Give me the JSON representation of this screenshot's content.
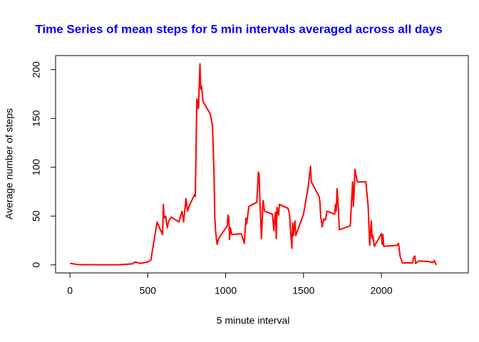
{
  "chart_data": {
    "type": "line",
    "title": "Time Series of mean steps for 5 min intervals averaged across all days",
    "x_label": "5 minute interval",
    "y_label": "Average number of steps",
    "xlim": [
      -92,
      2558
    ],
    "ylim": [
      -8.2,
      214.4
    ],
    "xticks": [
      0,
      500,
      1000,
      1500,
      2000
    ],
    "yticks": [
      0,
      50,
      100,
      150,
      200
    ],
    "series": [
      {
        "name": "mean steps",
        "color": "#ff0000",
        "x": [
          0,
          50,
          100,
          200,
          300,
          350,
          400,
          420,
          450,
          500,
          520,
          535,
          560,
          575,
          595,
          600,
          605,
          615,
          625,
          635,
          650,
          700,
          710,
          720,
          730,
          745,
          755,
          765,
          800,
          805,
          815,
          825,
          835,
          840,
          845,
          855,
          900,
          915,
          920,
          925,
          930,
          935,
          945,
          955,
          1010,
          1015,
          1020,
          1025,
          1030,
          1040,
          1100,
          1120,
          1130,
          1135,
          1145,
          1150,
          1200,
          1210,
          1215,
          1220,
          1230,
          1240,
          1250,
          1300,
          1310,
          1315,
          1320,
          1325,
          1330,
          1340,
          1345,
          1400,
          1405,
          1410,
          1415,
          1425,
          1430,
          1435,
          1440,
          1445,
          1450,
          1500,
          1530,
          1545,
          1550,
          1600,
          1605,
          1610,
          1620,
          1630,
          1640,
          1650,
          1700,
          1705,
          1710,
          1715,
          1720,
          1730,
          1800,
          1815,
          1820,
          1825,
          1830,
          1845,
          1900,
          1915,
          1925,
          1930,
          1935,
          1940,
          1945,
          1950,
          1955,
          2000,
          2005,
          2010,
          2015,
          2100,
          2110,
          2115,
          2120,
          2135,
          2200,
          2205,
          2215,
          2220,
          2240,
          2300,
          2330,
          2340,
          2350,
          2355
        ],
        "values": [
          1.7,
          0.3,
          0.2,
          0.1,
          0.1,
          0.5,
          1,
          3,
          1.5,
          3,
          5,
          20,
          44,
          38,
          31,
          62,
          48,
          50,
          38,
          45,
          49,
          44,
          50,
          55,
          44,
          68,
          55,
          60,
          72,
          70,
          170,
          160,
          206,
          180,
          183,
          167,
          155,
          143,
          120,
          95,
          50,
          35,
          21,
          27,
          40,
          51,
          49,
          26,
          38,
          31,
          32,
          22,
          48,
          42,
          55,
          60,
          64,
          95,
          93,
          65,
          27,
          66,
          55,
          52,
          35,
          48,
          54,
          27,
          59,
          51,
          62,
          58,
          55,
          52,
          38,
          17,
          43,
          30,
          38,
          45,
          30,
          52,
          80,
          101,
          85,
          70,
          65,
          50,
          39,
          47,
          46,
          55,
          52,
          62,
          55,
          78,
          68,
          36,
          40,
          85,
          60,
          75,
          98,
          85,
          85,
          60,
          20,
          33,
          45,
          27,
          30,
          24,
          19,
          32,
          21,
          31,
          19,
          20,
          22,
          15,
          9,
          2,
          2,
          7,
          9,
          1.5,
          4,
          3.5,
          2.5,
          4.5,
          0.5,
          1
        ]
      }
    ]
  }
}
